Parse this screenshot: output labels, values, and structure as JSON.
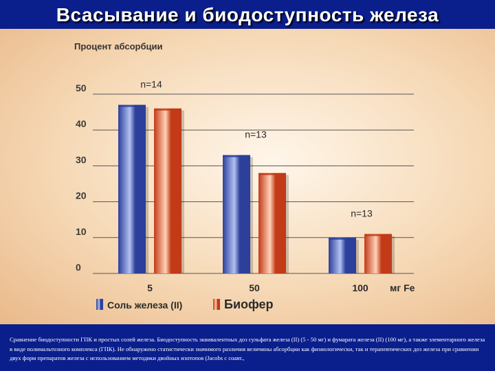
{
  "slide": {
    "title": "Всасывание и биодоступность железа",
    "caption": "Сравнение биодоступности ГПК и простых солей железа. Биодоступность эквивалентных доз сульфата железа (II) (5 - 50 мг) и фумарата железа (II) (100 мг), а также элементарного железа в виде полимальтозного комплекса (ГПК). Не обнаружено статистически значимого различия величины абсорбции как физиологически, так и терапевтических доз железа при сравнении двух форм препаратов железа с использованием методики двойных изотопов (Jacobs с соавт.,"
  },
  "chart_data": {
    "type": "bar",
    "ylabel": "Процент абсорбции",
    "xunit": "мг Fe",
    "categories": [
      "5",
      "50",
      "100"
    ],
    "group_labels": [
      "n=14",
      "n=13",
      "n=13"
    ],
    "yticks": [
      0,
      10,
      20,
      30,
      40,
      50
    ],
    "ylim": [
      0,
      50
    ],
    "grid": true,
    "legend_position": "bottom-left",
    "series": [
      {
        "name": "Соль железа (II)",
        "values": [
          47,
          33,
          10
        ],
        "color": "#2c3f9a",
        "highlight": "#b3c1f2"
      },
      {
        "name": "Биофер",
        "values": [
          46,
          28,
          11
        ],
        "color": "#c23a17",
        "highlight": "#ffd2b8"
      }
    ]
  }
}
